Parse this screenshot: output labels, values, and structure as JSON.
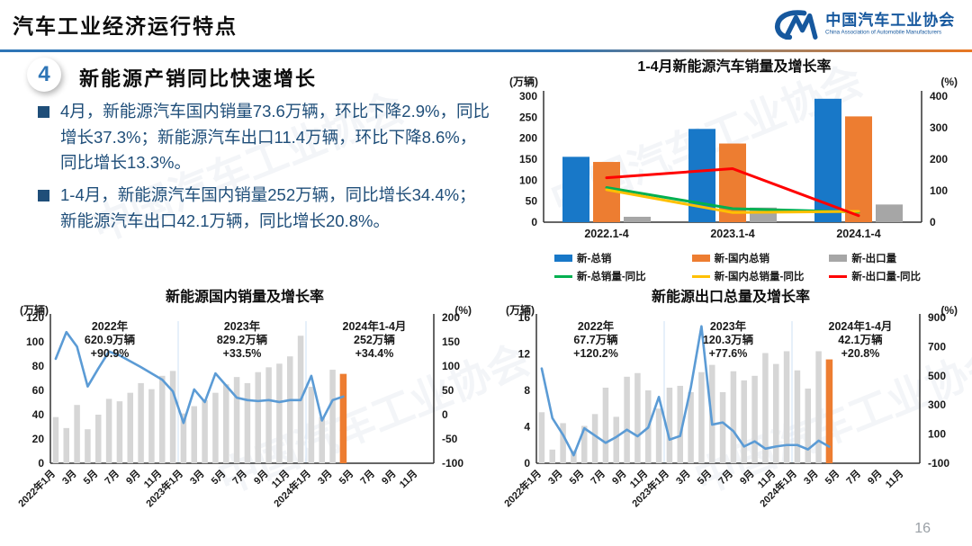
{
  "header": {
    "title": "汽车工业经济运行特点",
    "logo": {
      "org_cn": "中国汽车工业协会",
      "org_en": "China Association of Automobile Manufacturers"
    }
  },
  "section": {
    "number": "4",
    "heading": "新能源产销同比快速增长"
  },
  "bullets": [
    "4月，新能源汽车国内销量73.6万辆，环比下降2.9%，同比增长37.3%；新能源汽车出口11.4万辆，环比下降8.6%，同比增长13.3%。",
    "1-4月，新能源汽车国内销量252万辆，同比增长34.4%；新能源汽车出口42.1万辆，同比增长20.8%。"
  ],
  "watermark": "中国汽车工业协会",
  "page_number": "16",
  "colors": {
    "accent_blue": "#2E75B6",
    "accent_orange": "#ED7D31",
    "body_text": "#1F4E79",
    "bar_blue": "#1878C8",
    "bar_orange": "#ED7D31",
    "bar_gray_dark": "#A6A6A6",
    "bar_gray_light": "#D6D6D6",
    "line_blue": "#5B9BD5",
    "line_green": "#00B050",
    "line_yellow": "#FFC000",
    "line_red": "#FF0000"
  },
  "chart_data": [
    {
      "id": "nev-sales-jan-apr",
      "type": "bar",
      "title": "1-4月新能源汽车销量及增长率",
      "left_axis": {
        "label": "(万辆)",
        "min": 0,
        "max": 300,
        "step": 50
      },
      "right_axis": {
        "label": "(%)",
        "min": 0,
        "max": 400,
        "step": 100
      },
      "categories": [
        "2022.1-4",
        "2023.1-4",
        "2024.1-4"
      ],
      "bar_series": [
        {
          "name": "新-总销",
          "color": "#1878C8",
          "values": [
            155.7,
            222.2,
            294.0
          ]
        },
        {
          "name": "新-国内总销",
          "color": "#ED7D31",
          "values": [
            143.5,
            187.4,
            252.0
          ]
        },
        {
          "name": "新-出口量",
          "color": "#A6A6A6",
          "values": [
            12.9,
            34.8,
            42.1
          ]
        }
      ],
      "line_series": [
        {
          "name": "新-总销量-同比",
          "color": "#00B050",
          "values": [
            110.0,
            42.8,
            32.3
          ]
        },
        {
          "name": "新-国内总销量-同比",
          "color": "#FFC000",
          "values": [
            103.0,
            30.6,
            34.4
          ]
        },
        {
          "name": "新-出口量-同比",
          "color": "#FF0000",
          "values": [
            141.0,
            170.0,
            20.8
          ]
        }
      ],
      "legend_position": "bottom"
    },
    {
      "id": "nev-domestic-monthly",
      "type": "bar",
      "title": "新能源国内销量及增长率",
      "left_axis": {
        "label": "(万辆)",
        "min": 0,
        "max": 120,
        "step": 20
      },
      "right_axis": {
        "label": "(%)",
        "min": -100,
        "max": 200,
        "step": 50
      },
      "months_total": 36,
      "x_tick_labels": [
        "2022年1月",
        "3月",
        "5月",
        "7月",
        "9月",
        "11月",
        "2023年1月",
        "3月",
        "5月",
        "7月",
        "9月",
        "11月",
        "2024年1月",
        "3月",
        "5月",
        "7月",
        "9月",
        "11月"
      ],
      "annotations": [
        {
          "lines": [
            "2022年",
            "620.9万辆",
            "+90.9%"
          ]
        },
        {
          "lines": [
            "2023年",
            "829.2万辆",
            "+33.5%"
          ]
        },
        {
          "lines": [
            "2024年1-4月",
            "252万辆",
            "+34.4%"
          ]
        }
      ],
      "bars": {
        "name": "月度国内销量(万辆)",
        "color": "#D6D6D6",
        "highlight_color": "#ED7D31",
        "values": [
          38,
          29,
          48,
          28,
          40,
          53,
          51,
          58,
          66,
          61,
          72,
          76,
          41,
          47,
          52,
          58,
          65,
          71,
          66,
          75,
          79,
          82,
          88,
          105,
          63,
          38,
          77,
          73.6
        ]
      },
      "line": {
        "name": "同比增长率(%)",
        "color": "#5B9BD5",
        "values": [
          115,
          170,
          140,
          58,
          95,
          130,
          122,
          110,
          98,
          85,
          72,
          48,
          -17,
          52,
          26,
          85,
          60,
          35,
          30,
          28,
          30,
          26,
          30,
          30,
          80,
          -12,
          30,
          37.3
        ]
      }
    },
    {
      "id": "nev-export-monthly",
      "type": "bar",
      "title": "新能源出口总量及增长率",
      "left_axis": {
        "label": "(万辆)",
        "min": 0,
        "max": 16,
        "step": 4
      },
      "right_axis": {
        "label": "(%)",
        "min": -100,
        "max": 900,
        "step": 200
      },
      "months_total": 36,
      "x_tick_labels": [
        "2022年1月",
        "3月",
        "5月",
        "7月",
        "9月",
        "11月",
        "2023年1月",
        "3月",
        "5月",
        "7月",
        "9月",
        "11月",
        "2024年1月",
        "3月",
        "5月",
        "7月",
        "9月",
        "11月"
      ],
      "annotations": [
        {
          "lines": [
            "2022年",
            "67.7万辆",
            "+120.2%"
          ]
        },
        {
          "lines": [
            "2023年",
            "120.3万辆",
            "+77.6%"
          ]
        },
        {
          "lines": [
            "2024年1-4月",
            "42.1万辆",
            "+20.8%"
          ]
        }
      ],
      "bars": {
        "name": "月度出口量(万辆)",
        "color": "#D6D6D6",
        "highlight_color": "#ED7D31",
        "values": [
          5.6,
          1.5,
          4.4,
          1.4,
          4.1,
          5.4,
          8.3,
          5.1,
          9.5,
          9.9,
          8.0,
          6.0,
          8.3,
          8.5,
          7.8,
          10.0,
          10.8,
          7.8,
          10.1,
          9.1,
          9.6,
          12.1,
          10.9,
          12.3,
          10.2,
          8.2,
          12.3,
          11.4
        ]
      },
      "line": {
        "name": "同比增长率(%)",
        "color": "#5B9BD5",
        "values": [
          550,
          210,
          95,
          -45,
          140,
          90,
          40,
          80,
          130,
          85,
          145,
          355,
          62,
          87,
          420,
          840,
          165,
          180,
          120,
          15,
          50,
          0,
          15,
          25,
          25,
          -5,
          55,
          13.3
        ]
      }
    }
  ]
}
